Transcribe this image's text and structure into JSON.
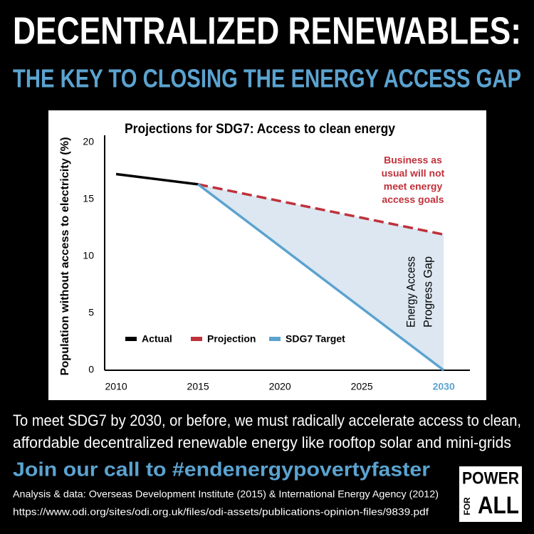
{
  "header": {
    "title": "DECENTRALIZED RENEWABLES:",
    "subtitle": "THE KEY TO CLOSING THE ENERGY ACCESS GAP"
  },
  "chart_data": {
    "type": "line",
    "title": "Projections for SDG7: Access to clean energy",
    "y_label": "Population without access to electricity (%)",
    "xlim": [
      2009.3,
      2031.6
    ],
    "xticks": [
      2010,
      2015,
      2020,
      2025,
      2030
    ],
    "ylim": [
      0,
      20.6
    ],
    "yticks": [
      0,
      5,
      10,
      15,
      20
    ],
    "highlight_x": 2030,
    "highlight_color": "#5ba3d0",
    "grid": false,
    "legend": "lower left",
    "series": [
      {
        "name": "Actual",
        "color": "#000000",
        "dashed": false,
        "x": [
          2010,
          2015
        ],
        "values": [
          17.2,
          16.3
        ]
      },
      {
        "name": "Projection",
        "color": "#c0313b",
        "dashed": true,
        "x": [
          2015,
          2030
        ],
        "values": [
          16.3,
          11.9
        ]
      },
      {
        "name": "SDG7 Target",
        "color": "#5ba3d0",
        "dashed": false,
        "x": [
          2015,
          2030
        ],
        "values": [
          16.3,
          0
        ]
      }
    ],
    "gap_fill": "#dce7f1",
    "annotation": [
      "Business as",
      "usual will not",
      "meet energy",
      "access goals"
    ],
    "gap_label": [
      "Energy Access",
      "Progress Gap"
    ]
  },
  "footer": {
    "body": [
      "To meet SDG7 by 2030, or before, we must radically accelerate access to clean,",
      "affordable decentralized renewable energy like rooftop solar and mini-grids"
    ],
    "call": "Join our call to #endenergypovertyfaster",
    "source": [
      "Analysis & data: Overseas Development Institute (2015) & International Energy Agency (2012)",
      "https://www.odi.org/sites/odi.org.uk/files/odi-assets/publications-opinion-files/9839.pdf"
    ],
    "logo": {
      "top": "POWER",
      "side": "FOR",
      "bottom": "ALL"
    }
  }
}
